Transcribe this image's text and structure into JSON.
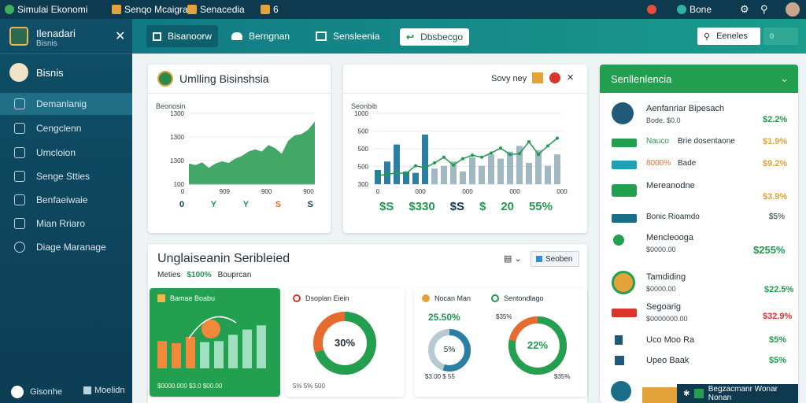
{
  "topbar": {
    "app_title": "Simulai Ekonomi",
    "item1": "Senqo Mcaigra",
    "item2": "Senacedia",
    "item3": "6",
    "user_item": "Bone"
  },
  "sidebar": {
    "title": "Ilenadari",
    "subtitle": "Bisnis",
    "section": "Bisnis",
    "items": [
      {
        "label": "Demanlanig"
      },
      {
        "label": "Cengclenn"
      },
      {
        "label": "Umcloion"
      },
      {
        "label": "Senge Stties"
      },
      {
        "label": "Benfaeiwaie"
      },
      {
        "label": "Mian Rriaro"
      },
      {
        "label": "Diage Maranage"
      }
    ],
    "footer_left": "Gisonhe",
    "footer_right": "Moelidn"
  },
  "tabs": [
    {
      "label": "Bisanoorw"
    },
    {
      "label": "Berngnan"
    },
    {
      "label": "Sensleenia"
    },
    {
      "label": "Dbsbecgo"
    }
  ],
  "search": {
    "button": "Eeneles",
    "extra": "0"
  },
  "chart1": {
    "title": "Umlling Bisinshsia",
    "ylabel": "Beonosin",
    "ticks_y": [
      "1300",
      "1300",
      "1300",
      "100"
    ],
    "ticks_x": [
      "0",
      "909",
      "900",
      "900"
    ],
    "footer": [
      {
        "icon": "0",
        "label": "0"
      },
      {
        "icon": "Y",
        "label": "Y"
      },
      {
        "icon": "Y",
        "label": "Y"
      },
      {
        "icon": "S",
        "label": "S"
      },
      {
        "icon": "S",
        "label": "S"
      }
    ]
  },
  "chart2": {
    "title": "Seonbib",
    "controls": "Sovy ney",
    "ticks_y": [
      "1000",
      "500",
      "500",
      "500",
      "300"
    ],
    "ticks_x": [
      "0",
      "000",
      "000",
      "000",
      "000"
    ],
    "stats": [
      "$S",
      "$330",
      "$S",
      "$",
      "20",
      "55%"
    ]
  },
  "section": {
    "title": "Unglaiseanin Seribleied",
    "summary_label": "Meties",
    "summary_value": "$100%",
    "summary_tag": "Bouprcan",
    "search_btn": "Seoben"
  },
  "mini_cards": [
    {
      "title": "Bamae Boabu",
      "footer": "$0000.000 $3.0 $00.00"
    },
    {
      "title": "Dsoplan Eiein",
      "value": "30%",
      "footer": "5% 5% 500"
    },
    {
      "title": "Nocan Man",
      "value": "5%",
      "note": "25.50%",
      "footer": "$3.00 $ 55"
    },
    {
      "title": "Sentondlago",
      "value": "22%",
      "note": "$35%",
      "footer": "$35%"
    }
  ],
  "right_panel": {
    "header": "Senllenlencia",
    "rows": [
      {
        "name": "Aenfanriar Bipesach",
        "sub": "Bode. $0.0",
        "value": "$2.2%"
      },
      {
        "name": "Nauco",
        "sub": "Brie dosentaone",
        "value": "$1.9%"
      },
      {
        "name": "8000%",
        "sub": "Bade",
        "value": "$9.2%"
      },
      {
        "name": "Mereanodne",
        "sub": "",
        "value": "$3.9%"
      },
      {
        "name": "Bonic Rioamdo",
        "sub": "",
        "value": "$5%"
      },
      {
        "name": "Mencleooga",
        "sub": "$0000.00",
        "value": "$255%"
      },
      {
        "name": "Tamdiding",
        "sub": "$0000.00",
        "value": "$22.5%"
      },
      {
        "name": "Segoarig",
        "sub": "$0000000.00",
        "value": "$32.9%"
      },
      {
        "name": "Uco Moo Ra",
        "sub": "",
        "value": "$5%"
      },
      {
        "name": "Upeo Baak",
        "sub": "",
        "value": "$5%"
      }
    ],
    "footer": "Begzacmanr Wonar Nonan"
  },
  "colors": {
    "accent": "#1f9a4e",
    "dark": "#0d3a4f",
    "teal": "#1a9b8c",
    "orange": "#e76b2f",
    "red": "#d9352b"
  },
  "chart_data": [
    {
      "type": "area",
      "title": "Umlling Bisinshsia",
      "ylabel": "Beonosin",
      "x": [
        0,
        1,
        2,
        3,
        4,
        5,
        6,
        7,
        8,
        9,
        10,
        11,
        12,
        13,
        14,
        15,
        16,
        17,
        18,
        19
      ],
      "values": [
        380,
        350,
        400,
        300,
        380,
        420,
        390,
        470,
        520,
        600,
        640,
        600,
        720,
        660,
        560,
        800,
        900,
        920,
        1000,
        1150
      ],
      "ylim": [
        0,
        1300
      ]
    },
    {
      "type": "bar",
      "title": "Seonbib",
      "bars": [
        200,
        320,
        560,
        180,
        160,
        700,
        220,
        260,
        320,
        180,
        380,
        260,
        420,
        360,
        460,
        540,
        300,
        480,
        260,
        420
      ],
      "line": [
        120,
        140,
        160,
        150,
        260,
        230,
        300,
        380,
        270,
        360,
        410,
        380,
        440,
        510,
        420,
        430,
        600,
        420,
        540,
        650
      ],
      "ylim": [
        0,
        1000
      ]
    },
    {
      "type": "bar",
      "title": "Bamae Boabu",
      "values": [
        520,
        480,
        600,
        500,
        520,
        640,
        740,
        820
      ]
    },
    {
      "type": "pie",
      "title": "Dsoplan Eiein",
      "values": [
        70,
        30
      ]
    },
    {
      "type": "pie",
      "title": "Nocan Man",
      "values": [
        55,
        45
      ]
    },
    {
      "type": "pie",
      "title": "Sentondlago",
      "values": [
        78,
        22
      ]
    }
  ]
}
